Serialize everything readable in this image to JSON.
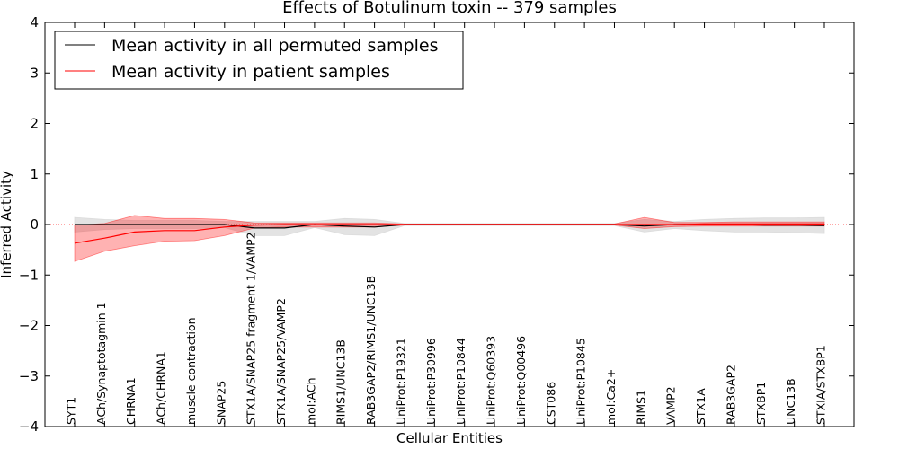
{
  "chart_data": {
    "type": "line",
    "title": "Effects of Botulinum toxin -- 379 samples",
    "xlabel": "Cellular Entities",
    "ylabel": "Inferred Activity",
    "ylim": [
      -4,
      4
    ],
    "yticks": [
      -4,
      -3,
      -2,
      -1,
      0,
      1,
      2,
      3,
      4
    ],
    "ytick_labels": [
      "−4",
      "−3",
      "−2",
      "−1",
      "0",
      "1",
      "2",
      "3",
      "4"
    ],
    "legend_position": "top-left",
    "categories": [
      "SYT1",
      "ACh/Synaptotagmin 1",
      "CHRNA1",
      "ACh/CHRNA1",
      "muscle contraction",
      "SNAP25",
      "STX1A/SNAP25 fragment 1/VAMP2",
      "STX1A/SNAP25/VAMP2",
      "mol:ACh",
      "RIMS1/UNC13B",
      "RAB3GAP2/RIMS1/UNC13B",
      "UniProt:P19321",
      "UniProt:P30996",
      "UniProt:P10844",
      "UniProt:Q60393",
      "UniProt:Q00496",
      "CST086",
      "UniProt:P10845",
      "mol:Ca2+",
      "RIMS1",
      "VAMP2",
      "STX1A",
      "RAB3GAP2",
      "STXBP1",
      "UNC13B",
      "STXIA/STXBP1"
    ],
    "series": [
      {
        "name": "Mean activity in all permuted samples",
        "color": "#000000",
        "band_color": "#d9d9d9",
        "values": [
          0,
          0,
          0,
          0,
          0,
          0,
          -0.07,
          -0.07,
          0,
          -0.03,
          -0.05,
          0,
          0,
          0,
          0,
          0,
          0,
          0,
          0,
          -0.03,
          0,
          0,
          0,
          -0.01,
          -0.01,
          -0.02
        ],
        "lower": [
          -0.15,
          -0.1,
          -0.08,
          -0.08,
          -0.08,
          -0.06,
          -0.22,
          -0.22,
          -0.06,
          -0.2,
          -0.22,
          -0.02,
          -0.02,
          -0.02,
          -0.02,
          -0.02,
          -0.02,
          -0.02,
          -0.02,
          -0.15,
          -0.08,
          -0.12,
          -0.15,
          -0.15,
          -0.16,
          -0.18
        ],
        "upper": [
          0.14,
          0.1,
          0.08,
          0.08,
          0.08,
          0.06,
          0.06,
          0.06,
          0.06,
          0.12,
          0.1,
          0.02,
          0.02,
          0.02,
          0.02,
          0.02,
          0.02,
          0.02,
          0.02,
          0.1,
          0.06,
          0.1,
          0.12,
          0.13,
          0.13,
          0.14
        ]
      },
      {
        "name": "Mean activity in patient samples",
        "color": "#ff0000",
        "band_color": "#ff0000",
        "values": [
          -0.37,
          -0.27,
          -0.15,
          -0.12,
          -0.12,
          -0.05,
          -0.01,
          0,
          0,
          0,
          0,
          0,
          0,
          0,
          0,
          0,
          0,
          0,
          0,
          0,
          0,
          0.01,
          0.01,
          0.01,
          0.01,
          0.01
        ],
        "lower": [
          -0.73,
          -0.53,
          -0.42,
          -0.33,
          -0.32,
          -0.22,
          -0.07,
          -0.05,
          -0.05,
          -0.05,
          -0.05,
          -0.01,
          -0.01,
          -0.01,
          -0.01,
          -0.01,
          -0.01,
          -0.01,
          -0.01,
          -0.08,
          -0.04,
          -0.03,
          -0.03,
          -0.03,
          -0.03,
          -0.03
        ],
        "upper": [
          -0.01,
          0.02,
          0.18,
          0.12,
          0.12,
          0.1,
          0.03,
          0.03,
          0.03,
          0.03,
          0.03,
          0.01,
          0.01,
          0.01,
          0.01,
          0.01,
          0.01,
          0.01,
          0.01,
          0.14,
          0.04,
          0.04,
          0.05,
          0.05,
          0.05,
          0.05
        ]
      }
    ]
  }
}
